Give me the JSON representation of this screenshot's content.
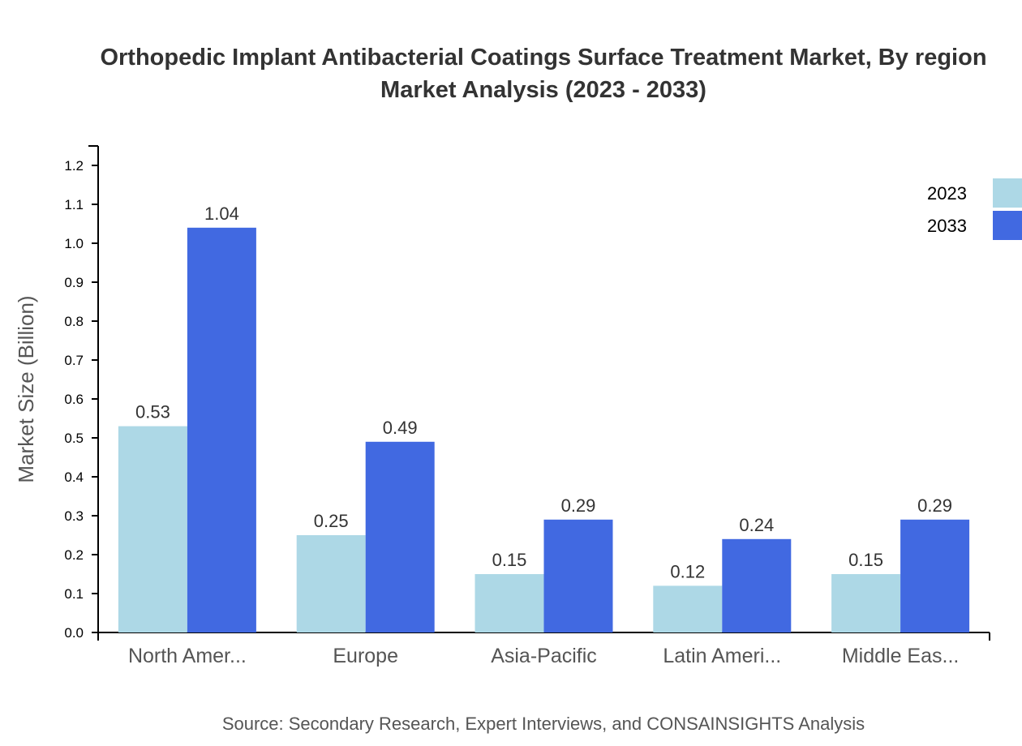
{
  "chart_data": {
    "type": "bar",
    "title_line1": "Orthopedic Implant Antibacterial Coatings Surface Treatment Market, By region",
    "title_line2": "Market Analysis (2023 - 2033)",
    "xlabel": "",
    "ylabel": "Market Size (Billion)",
    "ylim": [
      0,
      1.25
    ],
    "yticks": [
      "0.0",
      "0.1",
      "0.2",
      "0.3",
      "0.4",
      "0.5",
      "0.6",
      "0.7",
      "0.8",
      "0.9",
      "1.0",
      "1.1",
      "1.2"
    ],
    "categories": [
      "North Amer...",
      "Europe",
      "Asia-Pacific",
      "Latin Ameri...",
      "Middle Eas..."
    ],
    "series": [
      {
        "name": "2023",
        "color": "#add8e6",
        "values": [
          0.53,
          0.25,
          0.15,
          0.12,
          0.15
        ]
      },
      {
        "name": "2033",
        "color": "#4169e1",
        "values": [
          1.04,
          0.49,
          0.29,
          0.24,
          0.29
        ]
      }
    ],
    "legend_position": "top-right",
    "grid": false,
    "source": "Source: Secondary Research, Expert Interviews, and CONSAINSIGHTS Analysis"
  }
}
